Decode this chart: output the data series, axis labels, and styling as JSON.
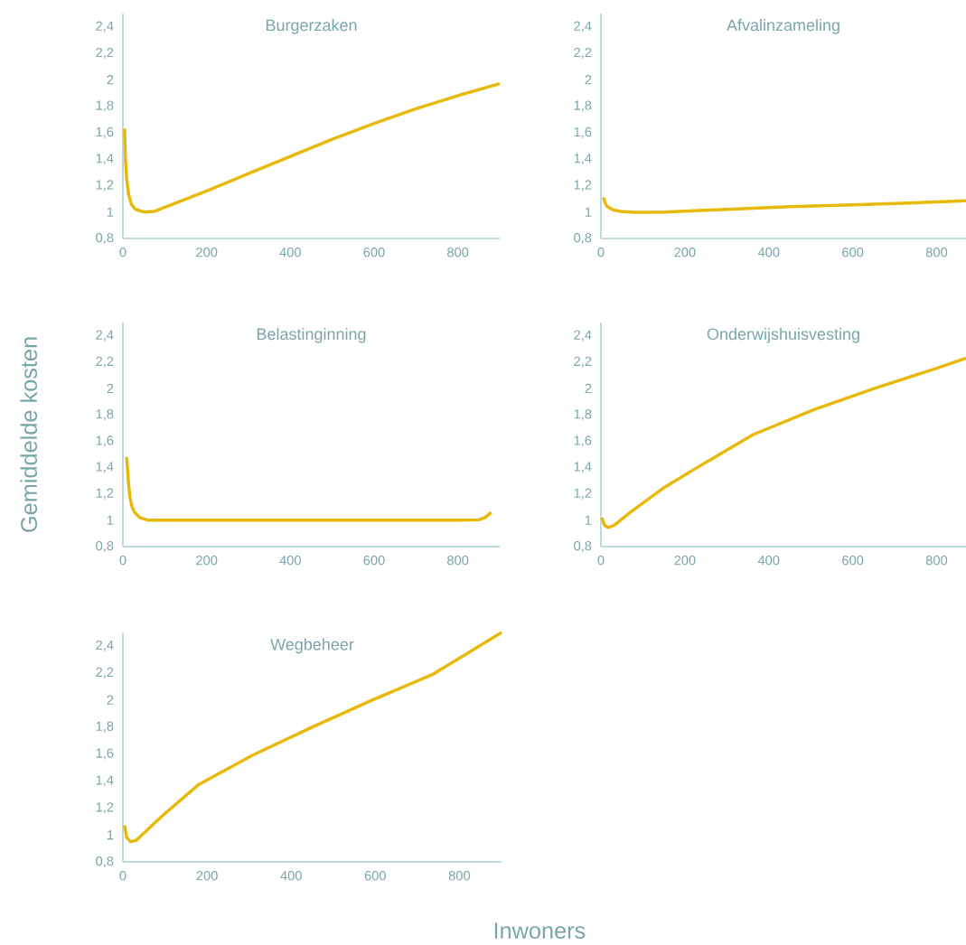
{
  "chart_data": [
    {
      "type": "line",
      "title": "Burgerzaken",
      "xlim": [
        0,
        900
      ],
      "ylim": [
        0.8,
        2.5
      ],
      "xticks": [
        0,
        200,
        400,
        600,
        800
      ],
      "yticks": [
        {
          "value": 0.8,
          "label": "0,8"
        },
        1,
        {
          "value": 1.2,
          "label": "1,2"
        },
        {
          "value": 1.4,
          "label": "1,4"
        },
        {
          "value": 1.6,
          "label": "1,6"
        },
        {
          "value": 1.8,
          "label": "1,8"
        },
        2,
        {
          "value": 2.2,
          "label": "2,2"
        },
        {
          "value": 2.4,
          "label": "2,4"
        }
      ],
      "series": [
        {
          "color": "#e8b90a",
          "x": [
            4,
            6,
            9,
            14,
            20,
            30,
            50,
            75,
            120,
            200,
            300,
            400,
            500,
            600,
            700,
            800,
            900
          ],
          "values": [
            1.63,
            1.4,
            1.25,
            1.13,
            1.06,
            1.02,
            1.0,
            1.005,
            1.06,
            1.16,
            1.29,
            1.42,
            1.55,
            1.67,
            1.78,
            1.88,
            1.97
          ]
        }
      ]
    },
    {
      "type": "line",
      "title": "Afvalinzameling",
      "xlim": [
        0,
        870
      ],
      "ylim": [
        0.8,
        2.5
      ],
      "xticks": [
        0,
        200,
        400,
        600,
        800
      ],
      "yticks": [
        {
          "value": 0.8,
          "label": "0,8"
        },
        1,
        {
          "value": 1.2,
          "label": "1,2"
        },
        {
          "value": 1.4,
          "label": "1,4"
        },
        {
          "value": 1.6,
          "label": "1,6"
        },
        {
          "value": 1.8,
          "label": "1,8"
        },
        2,
        {
          "value": 2.2,
          "label": "2,2"
        },
        {
          "value": 2.4,
          "label": "2,4"
        }
      ],
      "series": [
        {
          "color": "#e8b90a",
          "x": [
            6,
            10,
            15,
            30,
            50,
            80,
            150,
            300,
            450,
            600,
            750,
            870
          ],
          "values": [
            1.11,
            1.07,
            1.04,
            1.015,
            1.003,
            0.998,
            1.0,
            1.02,
            1.04,
            1.055,
            1.07,
            1.085
          ]
        }
      ]
    },
    {
      "type": "line",
      "title": "Belastinginning",
      "ylabel": "Gemiddelde kosten",
      "xlim": [
        0,
        900
      ],
      "ylim": [
        0.8,
        2.5
      ],
      "xticks": [
        0,
        200,
        400,
        600,
        800
      ],
      "yticks": [
        {
          "value": 0.8,
          "label": "0,8"
        },
        1,
        {
          "value": 1.2,
          "label": "1,2"
        },
        {
          "value": 1.4,
          "label": "1,4"
        },
        {
          "value": 1.6,
          "label": "1,6"
        },
        {
          "value": 1.8,
          "label": "1,8"
        },
        2,
        {
          "value": 2.2,
          "label": "2,2"
        },
        {
          "value": 2.4,
          "label": "2,4"
        }
      ],
      "series": [
        {
          "color": "#e8b90a",
          "x": [
            9,
            13,
            17,
            22,
            28,
            40,
            60,
            200,
            400,
            600,
            800,
            850,
            865,
            880
          ],
          "values": [
            1.48,
            1.3,
            1.17,
            1.1,
            1.06,
            1.02,
            1.0,
            1.0,
            1.0,
            1.0,
            1.0,
            1.003,
            1.02,
            1.06
          ]
        }
      ]
    },
    {
      "type": "line",
      "title": "Onderwijshuisvesting",
      "xlim": [
        0,
        870
      ],
      "ylim": [
        0.8,
        2.5
      ],
      "xticks": [
        0,
        200,
        400,
        600,
        800
      ],
      "yticks": [
        {
          "value": 0.8,
          "label": "0,8"
        },
        1,
        {
          "value": 1.2,
          "label": "1,2"
        },
        {
          "value": 1.4,
          "label": "1,4"
        },
        {
          "value": 1.6,
          "label": "1,6"
        },
        {
          "value": 1.8,
          "label": "1,8"
        },
        2,
        {
          "value": 2.2,
          "label": "2,2"
        },
        {
          "value": 2.4,
          "label": "2,4"
        }
      ],
      "series": [
        {
          "color": "#e8b90a",
          "x": [
            2,
            9,
            17,
            31,
            74,
            147,
            219,
            363,
            508,
            652,
            797,
            870
          ],
          "values": [
            1.02,
            0.96,
            0.945,
            0.96,
            1.07,
            1.24,
            1.38,
            1.65,
            1.84,
            2.0,
            2.15,
            2.23
          ]
        }
      ]
    },
    {
      "type": "line",
      "title": "Wegbeheer",
      "xlabel": "Inwoners",
      "xlim": [
        0,
        900
      ],
      "ylim": [
        0.8,
        2.5
      ],
      "xticks": [
        0,
        200,
        400,
        600,
        800
      ],
      "yticks": [
        {
          "value": 0.8,
          "label": "0,8"
        },
        1,
        {
          "value": 1.2,
          "label": "1,2"
        },
        {
          "value": 1.4,
          "label": "1,4"
        },
        {
          "value": 1.6,
          "label": "1,6"
        },
        {
          "value": 1.8,
          "label": "1,8"
        },
        2,
        {
          "value": 2.2,
          "label": "2,2"
        },
        {
          "value": 2.4,
          "label": "2,4"
        }
      ],
      "series": [
        {
          "color": "#e8b90a",
          "x": [
            4,
            9,
            18,
            32,
            93,
            179,
            308,
            451,
            594,
            737,
            900
          ],
          "values": [
            1.07,
            0.98,
            0.95,
            0.96,
            1.14,
            1.37,
            1.59,
            1.8,
            2.0,
            2.19,
            2.5
          ]
        }
      ]
    }
  ]
}
